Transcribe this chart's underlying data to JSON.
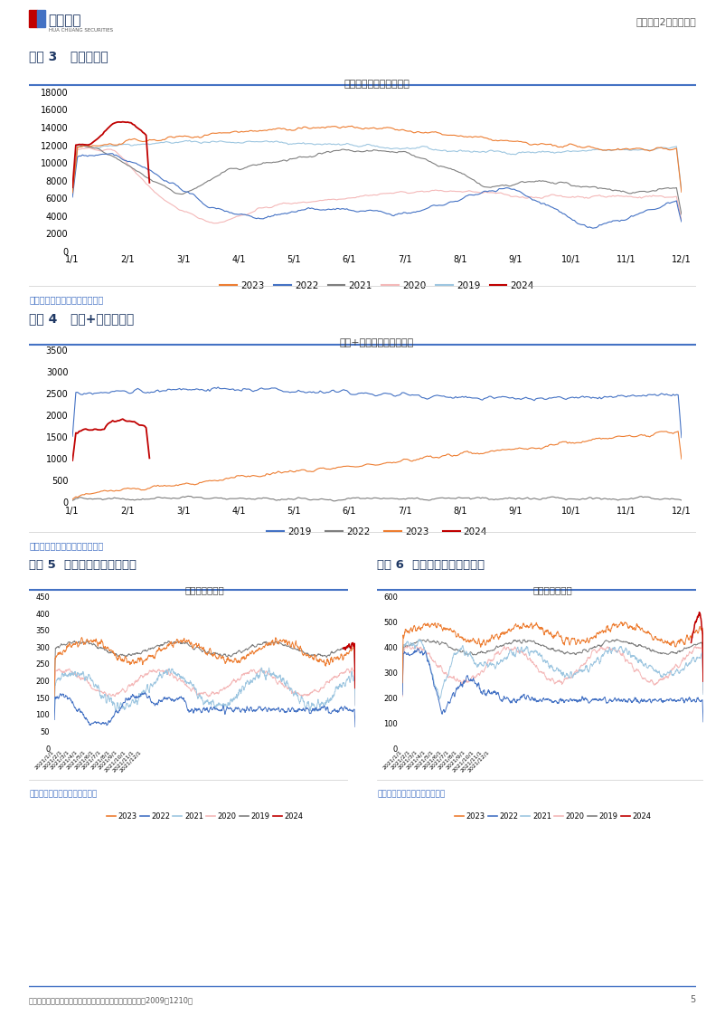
{
  "page_bg": "#ffffff",
  "title_color": "#1f3864",
  "source_text": "资料来源：航班管家，华创证券",
  "footer_text": "证监会审核华创证券投资咨询业务资格批文号：证监许可（2009）1210号",
  "footer_page": "5",
  "header_title": "航空行业2月数据点评",
  "chart3_title_label": "图表 3   国内航班量",
  "chart3_chart_title": "行业日度执飞国内航班量",
  "chart3_yticks": [
    0,
    2000,
    4000,
    6000,
    8000,
    10000,
    12000,
    14000,
    16000,
    18000
  ],
  "chart3_xticks": [
    "1/1",
    "2/1",
    "3/1",
    "4/1",
    "5/1",
    "6/1",
    "7/1",
    "8/1",
    "9/1",
    "10/1",
    "11/1",
    "12/1"
  ],
  "chart3_legend": [
    "2023",
    "2022",
    "2021",
    "2020",
    "2019",
    "2024"
  ],
  "chart3_colors": [
    "#ed7d31",
    "#4472c4",
    "#7f7f7f",
    "#f4b8b8",
    "#9dc6e0",
    "#c00000"
  ],
  "chart4_title_label": "图表 4   国际+地区航班量",
  "chart4_chart_title": "国际+地区航班执飞航班量",
  "chart4_yticks": [
    0,
    500,
    1000,
    1500,
    2000,
    2500,
    3000,
    3500
  ],
  "chart4_xticks": [
    "1/1",
    "2/1",
    "3/1",
    "4/1",
    "5/1",
    "6/1",
    "7/1",
    "8/1",
    "9/1",
    "10/1",
    "11/1",
    "12/1"
  ],
  "chart4_legend": [
    "2019",
    "2022",
    "2023",
    "2024"
  ],
  "chart4_colors": [
    "#4472c4",
    "#7f7f7f",
    "#ed7d31",
    "#c00000"
  ],
  "chart5_title_label": "图表 5  华夏航空航班量（班）",
  "chart5_chart_title": "华夏航空航班量",
  "chart5_yticks": [
    0,
    50,
    100,
    150,
    200,
    250,
    300,
    350,
    400,
    450
  ],
  "chart5_legend": [
    "2023",
    "2022",
    "2021",
    "2020",
    "2019",
    "2024"
  ],
  "chart5_colors": [
    "#ed7d31",
    "#4472c4",
    "#9dc6e0",
    "#f4b8b8",
    "#7f7f7f",
    "#c00000"
  ],
  "chart6_title_label": "图表 6  春秋航空航班量（班）",
  "chart6_chart_title": "春秋航空航班量",
  "chart6_yticks": [
    0,
    100,
    200,
    300,
    400,
    500,
    600
  ],
  "chart6_legend": [
    "2023",
    "2022",
    "2021",
    "2020",
    "2019",
    "2024"
  ],
  "chart6_colors": [
    "#ed7d31",
    "#4472c4",
    "#9dc6e0",
    "#f4b8b8",
    "#7f7f7f",
    "#c00000"
  ]
}
